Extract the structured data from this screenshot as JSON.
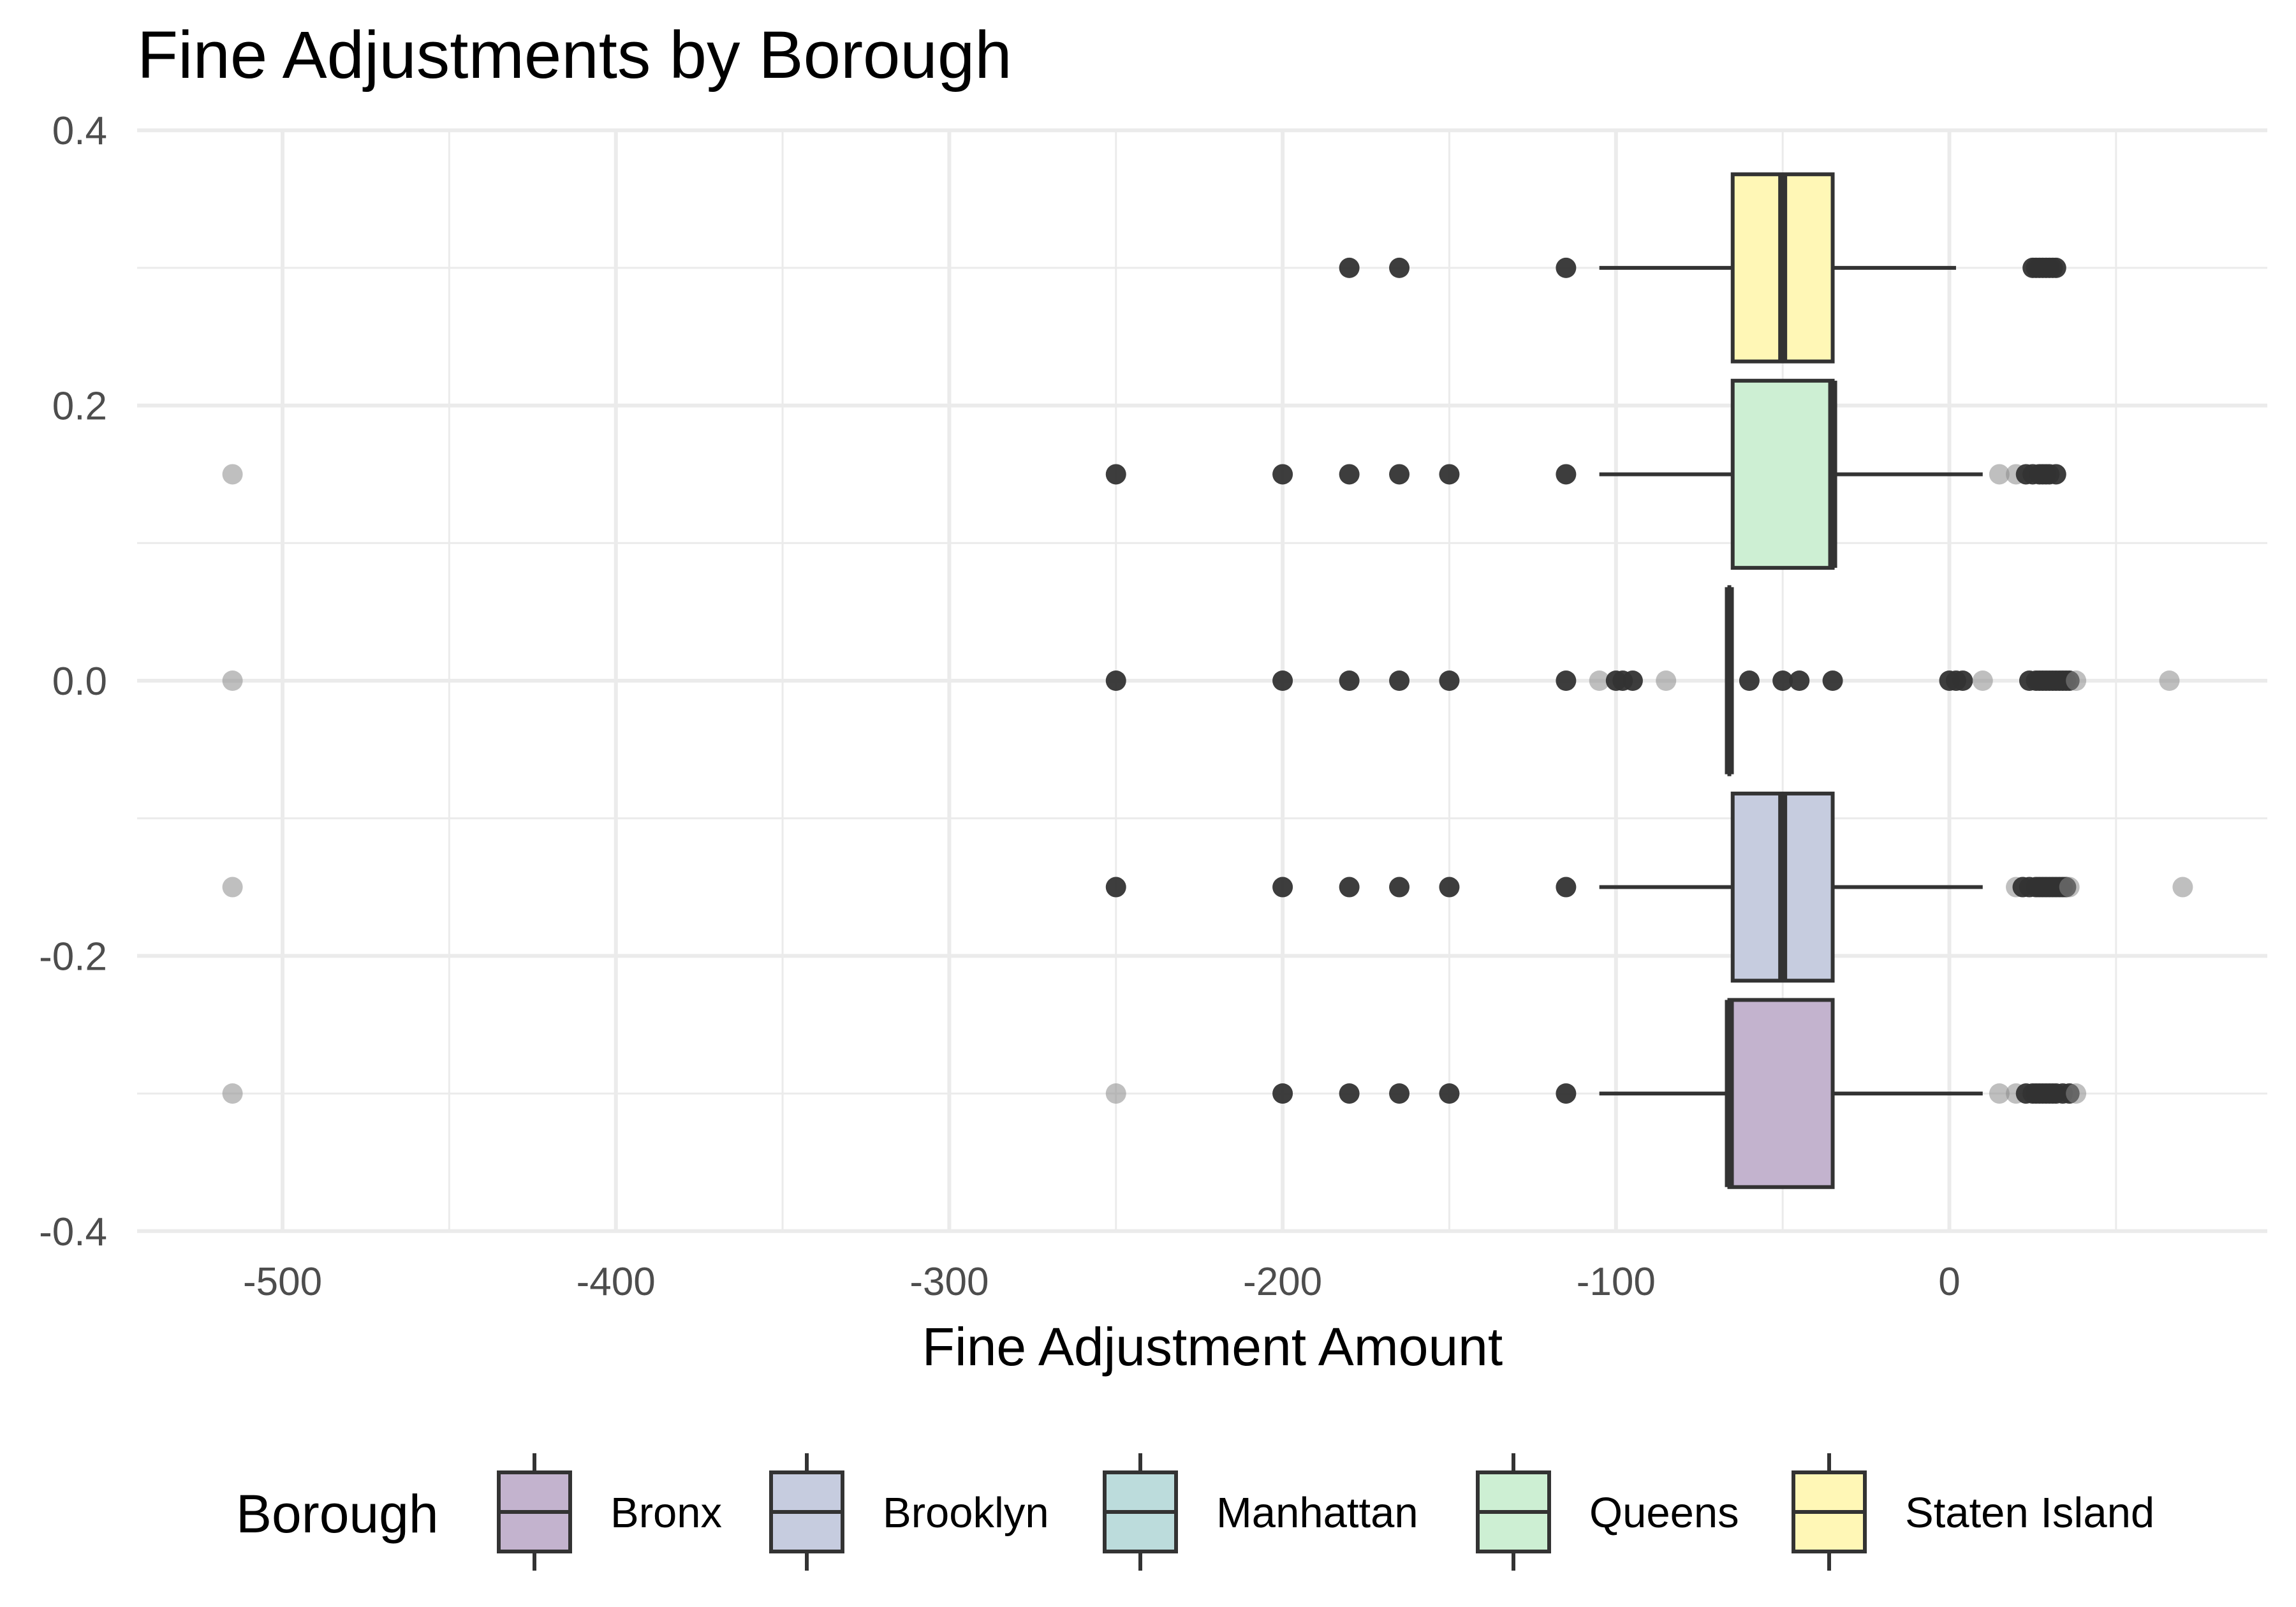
{
  "chart_data": {
    "type": "boxplot",
    "orientation": "horizontal",
    "title": "Fine Adjustments by Borough",
    "xlabel": "Fine Adjustment Amount",
    "ylabel": "",
    "xlim": [
      -545,
      95
    ],
    "ylim": [
      -0.4,
      0.4
    ],
    "x_ticks": [
      -500,
      -400,
      -300,
      -200,
      -100,
      0
    ],
    "x_tick_labels": [
      "-500",
      "-400",
      "-300",
      "-200",
      "-100",
      "0"
    ],
    "y_ticks": [
      -0.4,
      -0.2,
      0.0,
      0.2,
      0.4
    ],
    "y_tick_labels": [
      "-0.4",
      "-0.2",
      "0.0",
      "0.2",
      "0.4"
    ],
    "grid": true,
    "legend": {
      "title": "Borough",
      "placement": "bottom",
      "entries": [
        "Bronx",
        "Brooklyn",
        "Manhattan",
        "Queens",
        "Staten Island"
      ]
    },
    "colors": {
      "Bronx": "#c3b3ce",
      "Brooklyn": "#c6ccdf",
      "Manhattan": "#bcdcdc",
      "Queens": "#cdefd3",
      "Staten Island": "#fff7b6",
      "outline": "#333333"
    },
    "series": [
      {
        "name": "Bronx",
        "y": -0.3,
        "box_half_height": 0.068,
        "q1": -66,
        "median": -66,
        "q3": -35,
        "whisker_low": -105,
        "whisker_high": 10,
        "outliers": [
          -515,
          -250,
          -200,
          -180,
          -165,
          -150,
          -115,
          15,
          20,
          23,
          25,
          26,
          27,
          28,
          29,
          30,
          31,
          32,
          34,
          36,
          38
        ],
        "faint_outliers": [
          -515,
          -250,
          15,
          20,
          38
        ]
      },
      {
        "name": "Brooklyn",
        "y": -0.15,
        "box_half_height": 0.068,
        "q1": -65,
        "median": -50,
        "q3": -35,
        "whisker_low": -105,
        "whisker_high": 10,
        "outliers": [
          -515,
          -250,
          -200,
          -180,
          -165,
          -150,
          -115,
          20,
          22,
          24,
          26,
          27,
          28,
          29,
          30,
          31,
          32,
          33,
          34,
          35,
          36,
          70
        ],
        "faint_outliers": [
          -515,
          20,
          36,
          70
        ]
      },
      {
        "name": "Manhattan",
        "y": 0.0,
        "box_half_height": 0.068,
        "q1": -66,
        "median": -66,
        "q3": -66,
        "whisker_low": -66,
        "whisker_high": -66,
        "outliers": [
          -515,
          -250,
          -200,
          -180,
          -165,
          -150,
          -115,
          -105,
          -100,
          -98,
          -95,
          -85,
          -60,
          -50,
          -45,
          -35,
          0,
          2,
          4,
          10,
          24,
          26,
          27,
          28,
          29,
          30,
          31,
          32,
          33,
          34,
          35,
          36,
          38,
          66
        ],
        "faint_outliers": [
          -515,
          -105,
          -85,
          10,
          38,
          66
        ]
      },
      {
        "name": "Queens",
        "y": 0.15,
        "box_half_height": 0.068,
        "q1": -65,
        "median": -35,
        "q3": -35,
        "whisker_low": -105,
        "whisker_high": 10,
        "outliers": [
          -515,
          -250,
          -200,
          -180,
          -165,
          -150,
          -115,
          15,
          20,
          23,
          25,
          27,
          28,
          29,
          30,
          32
        ],
        "faint_outliers": [
          -515,
          15,
          20
        ]
      },
      {
        "name": "Staten Island",
        "y": 0.3,
        "box_half_height": 0.068,
        "q1": -65,
        "median": -50,
        "q3": -35,
        "whisker_low": -105,
        "whisker_high": 2,
        "outliers": [
          -180,
          -165,
          -115,
          25,
          26,
          27,
          28,
          29,
          30,
          31,
          32
        ],
        "faint_outliers": []
      }
    ]
  }
}
